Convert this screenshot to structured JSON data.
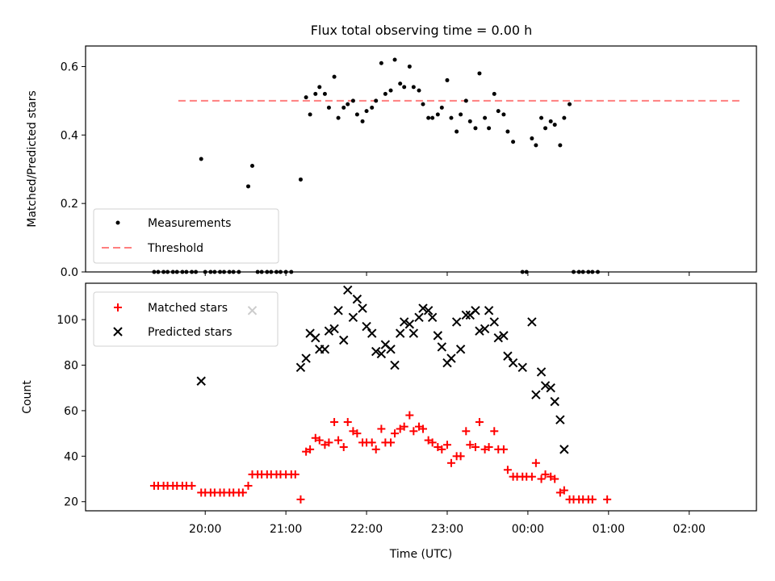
{
  "chart_data": [
    {
      "type": "scatter",
      "title": "Flux total observing time = 0.00 h",
      "ylabel": "Matched/Predicted stars",
      "ylim": [
        0,
        0.66
      ],
      "yticks": [
        0.0,
        0.2,
        0.4,
        0.6
      ],
      "ytick_labels": [
        "0.0",
        "0.2",
        "0.4",
        "0.6"
      ],
      "legend_position": "lower-left",
      "threshold": {
        "name": "Threshold",
        "value": 0.5,
        "x_start": "19:40",
        "x_end": "02:40",
        "color": "#ff7f7f"
      },
      "series": [
        {
          "name": "Measurements",
          "color": "#000000",
          "marker": "dot",
          "points": [
            [
              "19:22",
              0.0
            ],
            [
              "19:25",
              0.0
            ],
            [
              "19:29",
              0.0
            ],
            [
              "19:32",
              0.0
            ],
            [
              "19:36",
              0.0
            ],
            [
              "19:39",
              0.0
            ],
            [
              "19:43",
              0.0
            ],
            [
              "19:46",
              0.0
            ],
            [
              "19:50",
              0.0
            ],
            [
              "19:53",
              0.0
            ],
            [
              "19:57",
              0.33
            ],
            [
              "20:00",
              0.0
            ],
            [
              "20:04",
              0.0
            ],
            [
              "20:07",
              0.0
            ],
            [
              "20:11",
              0.0
            ],
            [
              "20:14",
              0.0
            ],
            [
              "20:18",
              0.0
            ],
            [
              "20:21",
              0.0
            ],
            [
              "20:25",
              0.0
            ],
            [
              "20:32",
              0.25
            ],
            [
              "20:35",
              0.31
            ],
            [
              "20:39",
              0.0
            ],
            [
              "20:42",
              0.0
            ],
            [
              "20:46",
              0.0
            ],
            [
              "20:49",
              0.0
            ],
            [
              "20:53",
              0.0
            ],
            [
              "20:56",
              0.0
            ],
            [
              "21:00",
              0.0
            ],
            [
              "21:04",
              0.0
            ],
            [
              "21:11",
              0.27
            ],
            [
              "21:15",
              0.51
            ],
            [
              "21:18",
              0.46
            ],
            [
              "21:22",
              0.52
            ],
            [
              "21:25",
              0.54
            ],
            [
              "21:29",
              0.52
            ],
            [
              "21:32",
              0.48
            ],
            [
              "21:36",
              0.57
            ],
            [
              "21:39",
              0.45
            ],
            [
              "21:43",
              0.48
            ],
            [
              "21:46",
              0.49
            ],
            [
              "21:50",
              0.5
            ],
            [
              "21:53",
              0.46
            ],
            [
              "21:57",
              0.44
            ],
            [
              "22:00",
              0.47
            ],
            [
              "22:04",
              0.48
            ],
            [
              "22:07",
              0.5
            ],
            [
              "22:11",
              0.61
            ],
            [
              "22:14",
              0.52
            ],
            [
              "22:18",
              0.53
            ],
            [
              "22:21",
              0.62
            ],
            [
              "22:25",
              0.55
            ],
            [
              "22:28",
              0.54
            ],
            [
              "22:32",
              0.6
            ],
            [
              "22:35",
              0.54
            ],
            [
              "22:39",
              0.53
            ],
            [
              "22:42",
              0.49
            ],
            [
              "22:46",
              0.45
            ],
            [
              "22:49",
              0.45
            ],
            [
              "22:53",
              0.46
            ],
            [
              "22:56",
              0.48
            ],
            [
              "23:00",
              0.56
            ],
            [
              "23:03",
              0.45
            ],
            [
              "23:07",
              0.41
            ],
            [
              "23:10",
              0.46
            ],
            [
              "23:14",
              0.5
            ],
            [
              "23:17",
              0.44
            ],
            [
              "23:21",
              0.42
            ],
            [
              "23:24",
              0.58
            ],
            [
              "23:28",
              0.45
            ],
            [
              "23:31",
              0.42
            ],
            [
              "23:35",
              0.52
            ],
            [
              "23:38",
              0.47
            ],
            [
              "23:42",
              0.46
            ],
            [
              "23:45",
              0.41
            ],
            [
              "23:49",
              0.38
            ],
            [
              "23:56",
              0.0
            ],
            [
              "23:59",
              0.0
            ],
            [
              "00:03",
              0.39
            ],
            [
              "00:06",
              0.37
            ],
            [
              "00:10",
              0.45
            ],
            [
              "00:13",
              0.42
            ],
            [
              "00:17",
              0.44
            ],
            [
              "00:20",
              0.43
            ],
            [
              "00:24",
              0.37
            ],
            [
              "00:27",
              0.45
            ],
            [
              "00:31",
              0.49
            ],
            [
              "00:34",
              0.0
            ],
            [
              "00:38",
              0.0
            ],
            [
              "00:41",
              0.0
            ],
            [
              "00:45",
              0.0
            ],
            [
              "00:48",
              0.0
            ],
            [
              "00:52",
              0.0
            ]
          ]
        }
      ]
    },
    {
      "type": "scatter",
      "xlabel": "Time (UTC)",
      "ylabel": "Count",
      "ylim": [
        16,
        116
      ],
      "yticks": [
        20,
        40,
        60,
        80,
        100
      ],
      "xticks": [
        "20:00",
        "21:00",
        "22:00",
        "23:00",
        "00:00",
        "01:00",
        "02:00"
      ],
      "legend_position": "upper-left",
      "series": [
        {
          "name": "Matched stars",
          "color": "#ff0000",
          "marker": "plus",
          "points": [
            [
              "19:22",
              27
            ],
            [
              "19:25",
              27
            ],
            [
              "19:29",
              27
            ],
            [
              "19:32",
              27
            ],
            [
              "19:36",
              27
            ],
            [
              "19:39",
              27
            ],
            [
              "19:43",
              27
            ],
            [
              "19:46",
              27
            ],
            [
              "19:50",
              27
            ],
            [
              "19:57",
              24
            ],
            [
              "20:00",
              24
            ],
            [
              "20:04",
              24
            ],
            [
              "20:07",
              24
            ],
            [
              "20:11",
              24
            ],
            [
              "20:14",
              24
            ],
            [
              "20:18",
              24
            ],
            [
              "20:21",
              24
            ],
            [
              "20:25",
              24
            ],
            [
              "20:28",
              24
            ],
            [
              "20:32",
              27
            ],
            [
              "20:35",
              32
            ],
            [
              "20:39",
              32
            ],
            [
              "20:42",
              32
            ],
            [
              "20:46",
              32
            ],
            [
              "20:49",
              32
            ],
            [
              "20:53",
              32
            ],
            [
              "20:56",
              32
            ],
            [
              "21:00",
              32
            ],
            [
              "21:04",
              32
            ],
            [
              "21:07",
              32
            ],
            [
              "21:11",
              21
            ],
            [
              "21:15",
              42
            ],
            [
              "21:18",
              43
            ],
            [
              "21:22",
              48
            ],
            [
              "21:25",
              47
            ],
            [
              "21:29",
              45
            ],
            [
              "21:32",
              46
            ],
            [
              "21:36",
              55
            ],
            [
              "21:39",
              47
            ],
            [
              "21:43",
              44
            ],
            [
              "21:46",
              55
            ],
            [
              "21:50",
              51
            ],
            [
              "21:53",
              50
            ],
            [
              "21:57",
              46
            ],
            [
              "22:00",
              46
            ],
            [
              "22:04",
              46
            ],
            [
              "22:07",
              43
            ],
            [
              "22:11",
              52
            ],
            [
              "22:14",
              46
            ],
            [
              "22:18",
              46
            ],
            [
              "22:21",
              50
            ],
            [
              "22:25",
              52
            ],
            [
              "22:28",
              53
            ],
            [
              "22:32",
              58
            ],
            [
              "22:35",
              51
            ],
            [
              "22:39",
              53
            ],
            [
              "22:42",
              52
            ],
            [
              "22:46",
              47
            ],
            [
              "22:49",
              46
            ],
            [
              "22:53",
              44
            ],
            [
              "22:56",
              43
            ],
            [
              "23:00",
              45
            ],
            [
              "23:03",
              37
            ],
            [
              "23:07",
              40
            ],
            [
              "23:10",
              40
            ],
            [
              "23:14",
              51
            ],
            [
              "23:17",
              45
            ],
            [
              "23:21",
              44
            ],
            [
              "23:24",
              55
            ],
            [
              "23:28",
              43
            ],
            [
              "23:31",
              44
            ],
            [
              "23:35",
              51
            ],
            [
              "23:38",
              43
            ],
            [
              "23:42",
              43
            ],
            [
              "23:45",
              34
            ],
            [
              "23:49",
              31
            ],
            [
              "23:52",
              31
            ],
            [
              "23:56",
              31
            ],
            [
              "23:59",
              31
            ],
            [
              "00:03",
              31
            ],
            [
              "00:06",
              37
            ],
            [
              "00:10",
              30
            ],
            [
              "00:13",
              32
            ],
            [
              "00:17",
              31
            ],
            [
              "00:20",
              30
            ],
            [
              "00:24",
              24
            ],
            [
              "00:27",
              25
            ],
            [
              "00:31",
              21
            ],
            [
              "00:34",
              21
            ],
            [
              "00:38",
              21
            ],
            [
              "00:41",
              21
            ],
            [
              "00:45",
              21
            ],
            [
              "00:48",
              21
            ],
            [
              "00:59",
              21
            ]
          ]
        },
        {
          "name": "Predicted stars",
          "color": "#000000",
          "marker": "x",
          "points": [
            [
              "19:57",
              73
            ],
            [
              "20:35",
              104
            ],
            [
              "21:11",
              79
            ],
            [
              "21:15",
              83
            ],
            [
              "21:18",
              94
            ],
            [
              "21:22",
              92
            ],
            [
              "21:25",
              87
            ],
            [
              "21:29",
              87
            ],
            [
              "21:32",
              95
            ],
            [
              "21:36",
              96
            ],
            [
              "21:39",
              104
            ],
            [
              "21:43",
              91
            ],
            [
              "21:46",
              113
            ],
            [
              "21:50",
              101
            ],
            [
              "21:53",
              109
            ],
            [
              "21:57",
              105
            ],
            [
              "22:00",
              97
            ],
            [
              "22:04",
              94
            ],
            [
              "22:07",
              86
            ],
            [
              "22:11",
              85
            ],
            [
              "22:14",
              89
            ],
            [
              "22:18",
              87
            ],
            [
              "22:21",
              80
            ],
            [
              "22:25",
              94
            ],
            [
              "22:28",
              99
            ],
            [
              "22:32",
              98
            ],
            [
              "22:35",
              94
            ],
            [
              "22:39",
              101
            ],
            [
              "22:42",
              105
            ],
            [
              "22:46",
              104
            ],
            [
              "22:49",
              101
            ],
            [
              "22:53",
              93
            ],
            [
              "22:56",
              88
            ],
            [
              "23:00",
              81
            ],
            [
              "23:03",
              83
            ],
            [
              "23:07",
              99
            ],
            [
              "23:10",
              87
            ],
            [
              "23:14",
              102
            ],
            [
              "23:17",
              102
            ],
            [
              "23:21",
              104
            ],
            [
              "23:24",
              95
            ],
            [
              "23:28",
              96
            ],
            [
              "23:31",
              104
            ],
            [
              "23:35",
              99
            ],
            [
              "23:38",
              92
            ],
            [
              "23:42",
              93
            ],
            [
              "23:45",
              84
            ],
            [
              "23:49",
              81
            ],
            [
              "23:56",
              79
            ],
            [
              "00:03",
              99
            ],
            [
              "00:06",
              67
            ],
            [
              "00:10",
              77
            ],
            [
              "00:13",
              71
            ],
            [
              "00:17",
              70
            ],
            [
              "00:20",
              64
            ],
            [
              "00:24",
              56
            ],
            [
              "00:27",
              43
            ]
          ]
        }
      ]
    }
  ]
}
